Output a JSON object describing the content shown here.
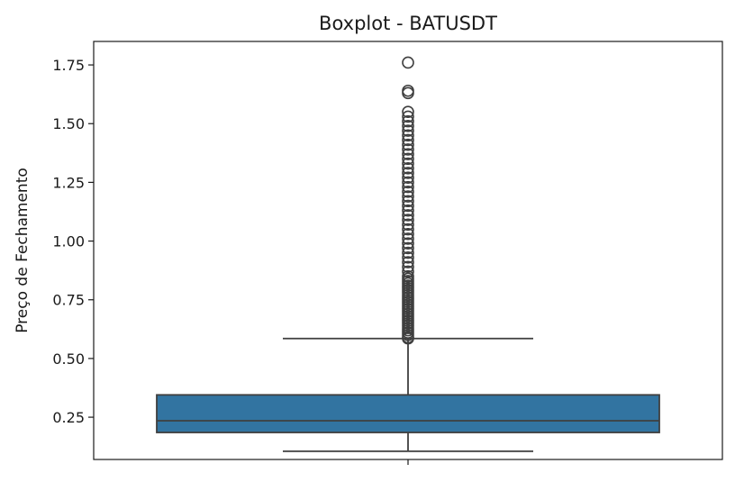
{
  "chart_data": {
    "type": "boxplot",
    "title": "Boxplot - BATUSDT",
    "xlabel": "",
    "ylabel": "Preço de Fechamento",
    "ylim": [
      0.07,
      1.85
    ],
    "y_ticks": [
      0.25,
      0.5,
      0.75,
      1.0,
      1.25,
      1.5,
      1.75
    ],
    "y_tick_labels": [
      "0.25",
      "0.50",
      "0.75",
      "1.00",
      "1.25",
      "1.50",
      "1.75"
    ],
    "grid": false,
    "box_color": "#3274a1",
    "line_color": "#3f3f3f",
    "series": [
      {
        "whisker_low": 0.105,
        "q1": 0.185,
        "median": 0.235,
        "q3": 0.345,
        "whisker_high": 0.585,
        "outliers": [
          0.585,
          0.59,
          0.6,
          0.61,
          0.62,
          0.63,
          0.64,
          0.65,
          0.66,
          0.67,
          0.68,
          0.69,
          0.7,
          0.71,
          0.72,
          0.73,
          0.74,
          0.75,
          0.76,
          0.77,
          0.78,
          0.79,
          0.8,
          0.81,
          0.82,
          0.83,
          0.84,
          0.85,
          0.87,
          0.89,
          0.91,
          0.93,
          0.95,
          0.97,
          0.99,
          1.01,
          1.03,
          1.05,
          1.07,
          1.09,
          1.11,
          1.13,
          1.15,
          1.17,
          1.19,
          1.21,
          1.23,
          1.25,
          1.27,
          1.29,
          1.31,
          1.33,
          1.35,
          1.37,
          1.39,
          1.41,
          1.43,
          1.45,
          1.47,
          1.49,
          1.51,
          1.53,
          1.55,
          1.63,
          1.64,
          1.76
        ]
      }
    ]
  }
}
